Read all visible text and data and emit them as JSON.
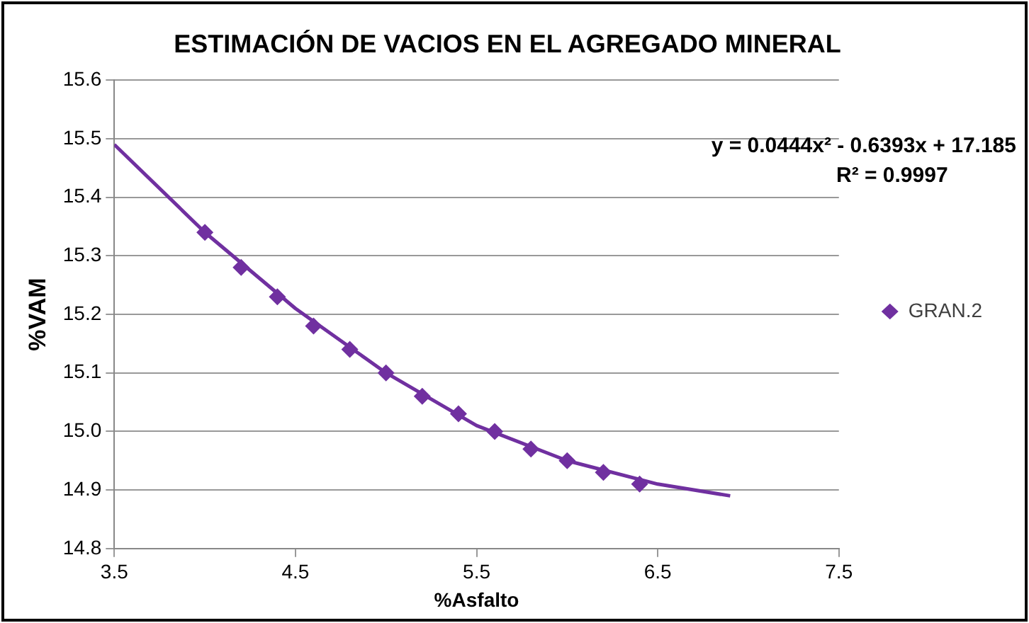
{
  "chart_data": {
    "type": "scatter",
    "title": "ESTIMACIÓN DE VACIOS EN EL AGREGADO MINERAL",
    "xlabel": "%Asfalto",
    "ylabel": "%VAM",
    "xlim": [
      3.5,
      7.5
    ],
    "xticks": [
      3.5,
      4.5,
      5.5,
      6.5,
      7.5
    ],
    "ylim": [
      14.8,
      15.6
    ],
    "yticks": [
      {
        "value": 14.8,
        "label": "14.8"
      },
      {
        "value": 14.9,
        "label": "14.9"
      },
      {
        "value": 15.0,
        "label": "15.0"
      },
      {
        "value": 15.1,
        "label": "15.1"
      },
      {
        "value": 15.2,
        "label": "15.2"
      },
      {
        "value": 15.3,
        "label": "15.3"
      },
      {
        "value": 15.4,
        "label": "15.4"
      },
      {
        "value": 15.5,
        "label": "15.5"
      },
      {
        "value": 15.6,
        "label": "15.6"
      }
    ],
    "grid": "y",
    "legend": "right",
    "marker": "diamond",
    "annotations": [
      "y = 0.0444x² - 0.6393x + 17.185",
      "R² = 0.9997"
    ],
    "series": [
      {
        "name": "GRAN.2",
        "type": "scatter",
        "color": "#7030a0",
        "x": [
          4.0,
          4.2,
          4.4,
          4.6,
          4.8,
          5.0,
          5.2,
          5.4,
          5.6,
          5.8,
          6.0,
          6.2,
          6.4
        ],
        "values": [
          15.34,
          15.28,
          15.23,
          15.18,
          15.14,
          15.1,
          15.06,
          15.03,
          15.0,
          14.97,
          14.95,
          14.93,
          14.91
        ]
      },
      {
        "type": "line",
        "color": "#7030a0",
        "marker": "none",
        "x": [
          3.5,
          4.0,
          4.5,
          5.0,
          5.5,
          6.0,
          6.5,
          6.9
        ],
        "values": [
          15.49,
          15.34,
          15.21,
          15.1,
          15.01,
          14.95,
          14.91,
          14.89
        ]
      }
    ]
  }
}
